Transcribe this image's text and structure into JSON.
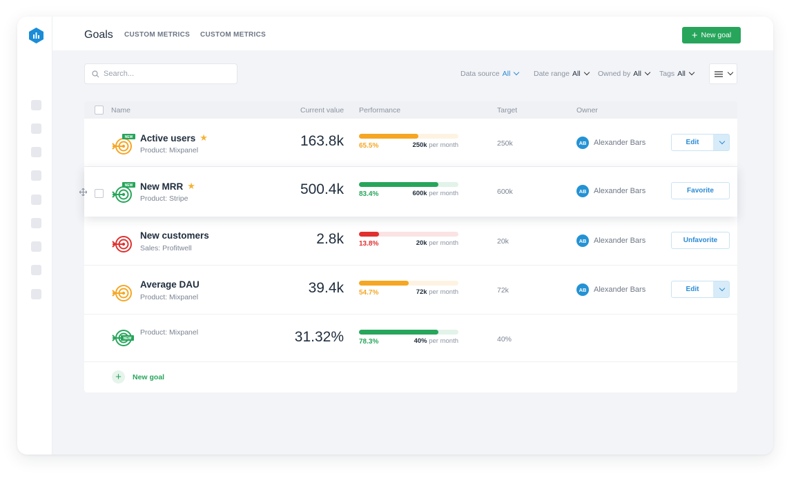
{
  "header": {
    "title": "Goals",
    "links": [
      "CUSTOM METRICS",
      "CUSTOM METRICS"
    ],
    "new_goal_label": "New goal"
  },
  "search": {
    "placeholder": "Search..."
  },
  "filters": [
    {
      "label": "Data source",
      "value": "All"
    },
    {
      "label": "Date range",
      "value": "All"
    },
    {
      "label": "Owned by",
      "value": "All"
    },
    {
      "label": "Tags",
      "value": "All"
    }
  ],
  "table": {
    "columns": [
      "Name",
      "Current value",
      "Performance",
      "Target",
      "Owner"
    ],
    "rows": [
      {
        "name": "Active users",
        "starred": true,
        "is_new": true,
        "source": "Product: Mixpanel",
        "current": "163.8k",
        "progress": 0.6,
        "pct": "65.5%",
        "target_value": "250k",
        "target_unit": "per month",
        "target": "250k",
        "owner_initials": "AB",
        "owner": "Alexander Bars",
        "action": "Edit",
        "status_color": "#f5a623"
      },
      {
        "name": "New MRR",
        "starred": true,
        "is_new": true,
        "source": "Product: Stripe",
        "current": "500.4k",
        "progress": 0.8,
        "pct": "83.4%",
        "target_value": "600k",
        "target_unit": "per month",
        "target": "600k",
        "owner_initials": "AB",
        "owner": "Alexander Bars",
        "action": "Favorite",
        "status_color": "#27a55b"
      },
      {
        "name": "New customers",
        "starred": false,
        "is_new": false,
        "source": "Sales: Profitwell",
        "current": "2.8k",
        "progress": 0.2,
        "pct": "13.8%",
        "target_value": "20k",
        "target_unit": "per month",
        "target": "20k",
        "owner_initials": "AB",
        "owner": "Alexander Bars",
        "action": "Unfavorite",
        "status_color": "#e0302f"
      },
      {
        "name": "Average DAU",
        "starred": false,
        "is_new": false,
        "source": "Product: Mixpanel",
        "current": "39.4k",
        "progress": 0.5,
        "pct": "54.7%",
        "target_value": "72k",
        "target_unit": "per month",
        "target": "72k",
        "owner_initials": "AB",
        "owner": "Alexander Bars",
        "action": "Edit",
        "status_color": "#f5a623"
      },
      {
        "name": "",
        "starred": false,
        "is_new": true,
        "source": "Product: Mixpanel",
        "current": "31.32%",
        "progress": 0.8,
        "pct": "78.3%",
        "target_value": "40%",
        "target_unit": "per month",
        "target": "40%",
        "owner_initials": "",
        "owner": "",
        "action": "",
        "status_color": "#27a55b"
      }
    ],
    "add_label": "New goal"
  },
  "badges": {
    "new": "NEW"
  },
  "colors": {
    "brand_green": "#27a55b",
    "link_blue": "#2a8bd6",
    "avatar_blue": "#2492d4",
    "warning": "#f5a623",
    "danger": "#e0302f"
  },
  "icons": [
    "logo-icon",
    "plus-icon",
    "search-icon",
    "chevron-down-icon",
    "list-view-icon",
    "target-icon",
    "star-icon",
    "drag-handle-icon"
  ]
}
